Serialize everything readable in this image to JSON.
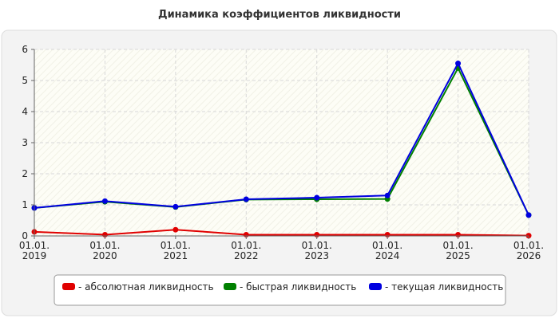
{
  "chart_data": {
    "type": "line",
    "title": "Динамика коэффициентов ликвидности",
    "categories": [
      [
        "01.01.",
        "2019"
      ],
      [
        "01.01.",
        "2020"
      ],
      [
        "01.01.",
        "2021"
      ],
      [
        "01.01.",
        "2022"
      ],
      [
        "01.01.",
        "2023"
      ],
      [
        "01.01.",
        "2024"
      ],
      [
        "01.01.",
        "2025"
      ],
      [
        "01.01.",
        "2026"
      ]
    ],
    "series": [
      {
        "name": "- абсолютная ликвидность",
        "color": "#e00000",
        "values": [
          0.13,
          0.04,
          0.2,
          0.04,
          0.04,
          0.04,
          0.04,
          0.01
        ]
      },
      {
        "name": "- быстрая ликвидность",
        "color": "#008000",
        "values": [
          0.9,
          1.1,
          0.93,
          1.17,
          1.18,
          1.19,
          5.4,
          0.67
        ]
      },
      {
        "name": "- текущая ликвидность",
        "color": "#0000e0",
        "values": [
          0.9,
          1.12,
          0.94,
          1.18,
          1.23,
          1.3,
          5.55,
          0.67
        ]
      }
    ],
    "ylim": [
      0,
      6
    ],
    "yticks": [
      0,
      1,
      2,
      3,
      4,
      5,
      6
    ],
    "grid": true,
    "legend": "bottom"
  }
}
